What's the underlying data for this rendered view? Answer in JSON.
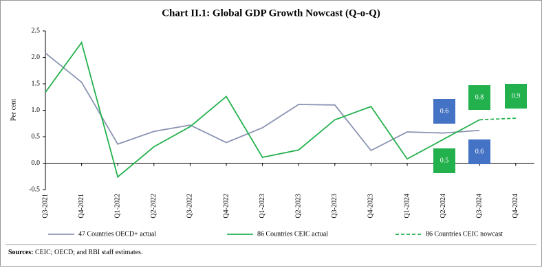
{
  "chart_data": {
    "type": "line",
    "title": "Chart II.1: Global GDP Growth Nowcast (Q-o-Q)",
    "y_label": "Per cent",
    "categories": [
      "Q3-2021",
      "Q4-2021",
      "Q1-2022",
      "Q2-2022",
      "Q3-2022",
      "Q4-2022",
      "Q1-2023",
      "Q2-2023",
      "Q3-2023",
      "Q4-2023",
      "Q1-2024",
      "Q2-2024",
      "Q3-2024",
      "Q4-2024"
    ],
    "series": [
      {
        "name": "47 Countries OECD+ actual",
        "color": "#8a94b2",
        "dash": false,
        "values": [
          2.08,
          1.53,
          0.36,
          0.6,
          0.72,
          0.39,
          0.67,
          1.11,
          1.1,
          0.24,
          0.59,
          0.57,
          0.62,
          null
        ]
      },
      {
        "name": "86 Countries CEIC actual",
        "color": "#22b14c",
        "dash": false,
        "values": [
          1.34,
          2.28,
          -0.26,
          0.31,
          0.69,
          1.26,
          0.11,
          0.25,
          0.82,
          1.07,
          0.08,
          0.45,
          0.82,
          null
        ]
      },
      {
        "name": "86 Countries CEIC nowcast",
        "color": "#22b14c",
        "dash": true,
        "values": [
          null,
          null,
          null,
          null,
          null,
          null,
          null,
          null,
          null,
          null,
          null,
          null,
          0.82,
          0.85
        ]
      }
    ],
    "annotations": [
      {
        "text": "0.6",
        "color": "#4472c4"
      },
      {
        "text": "0.5",
        "color": "#22b14c"
      },
      {
        "text": "0.8",
        "color": "#22b14c"
      },
      {
        "text": "0.6",
        "color": "#4472c4"
      },
      {
        "text": "0.9",
        "color": "#22b14c"
      }
    ],
    "ylim": [
      -0.5,
      2.5
    ],
    "yticks": [
      {
        "value": 2.5,
        "label": "2.5"
      },
      {
        "value": 2,
        "label": "2.0"
      },
      1.5,
      {
        "value": 1,
        "label": "1.0"
      },
      0.5,
      {
        "value": 0,
        "label": "0.0"
      },
      -0.5
    ],
    "grid": false,
    "source_label": "Sources:",
    "source_text": "CEIC; OECD; and RBI staff estimates."
  }
}
